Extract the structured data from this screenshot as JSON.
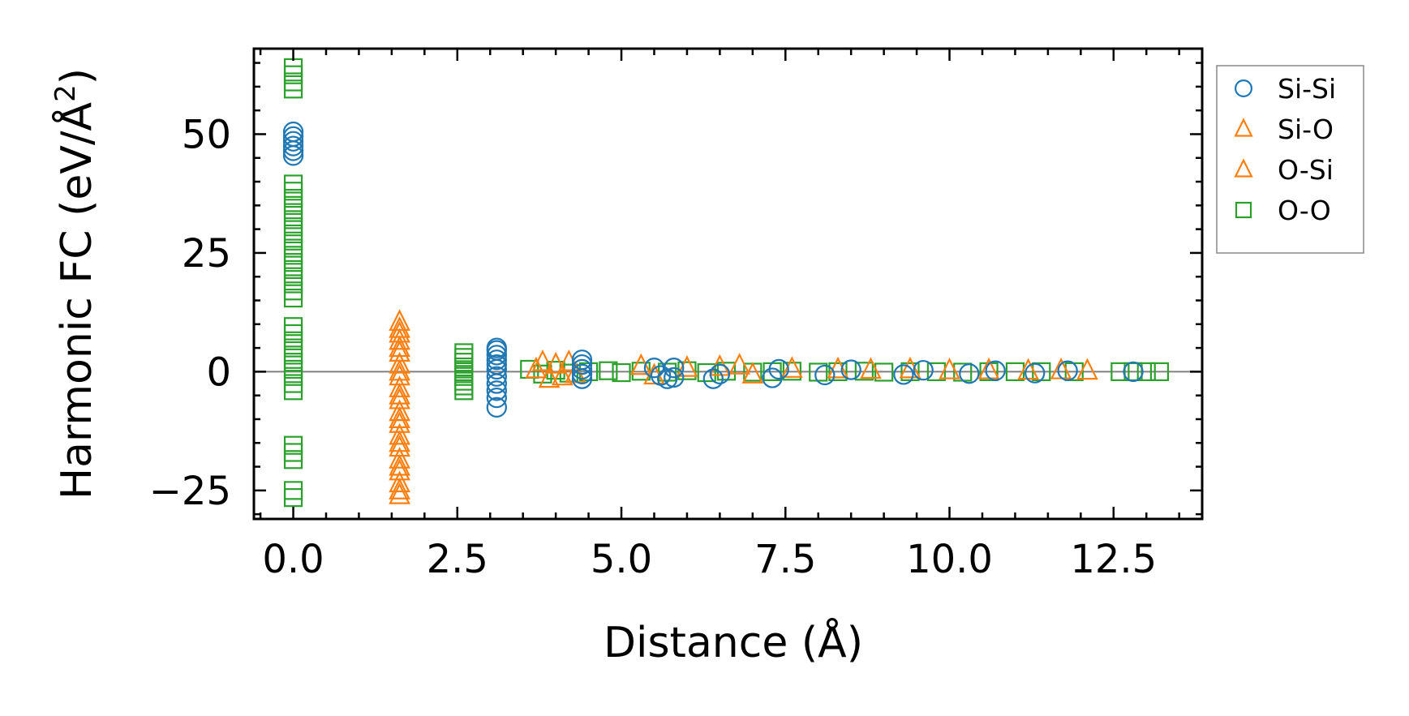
{
  "chart_data": {
    "type": "scatter",
    "xlabel": "Distance (Å)",
    "ylabel_main": "Harmonic FC (eV/Å",
    "ylabel_sup": "2",
    "ylabel_close": ")",
    "xlim": [
      -0.6,
      13.85
    ],
    "ylim": [
      -31,
      68
    ],
    "xticks": [
      0.0,
      2.5,
      5.0,
      7.5,
      10.0,
      12.5
    ],
    "xtick_labels": [
      "0.0",
      "2.5",
      "5.0",
      "7.5",
      "10.0",
      "12.5"
    ],
    "yticks": [
      -25,
      0,
      25,
      50
    ],
    "ytick_labels": [
      "−25",
      "0",
      "25",
      "50"
    ],
    "zero_line": true,
    "legend_position": "outside-right-top",
    "series": [
      {
        "name": "Si-Si",
        "marker": "circle",
        "color": "#1f77b4",
        "points": [
          [
            0.0,
            45.5
          ],
          [
            0.0,
            46.5
          ],
          [
            0.0,
            47.5
          ],
          [
            0.0,
            48.5
          ],
          [
            0.0,
            49.5
          ],
          [
            0.0,
            50.5
          ],
          [
            3.1,
            -7.5
          ],
          [
            3.1,
            -5.5
          ],
          [
            3.1,
            -4.0
          ],
          [
            3.1,
            -2.5
          ],
          [
            3.1,
            -1.0
          ],
          [
            3.1,
            0.5
          ],
          [
            3.1,
            1.5
          ],
          [
            3.1,
            2.5
          ],
          [
            3.1,
            3.5
          ],
          [
            3.1,
            4.5
          ],
          [
            3.1,
            5.0
          ],
          [
            4.4,
            -1.5
          ],
          [
            4.4,
            -0.5
          ],
          [
            4.4,
            0.5
          ],
          [
            4.4,
            1.5
          ],
          [
            4.4,
            2.5
          ],
          [
            5.5,
            0.8
          ],
          [
            5.6,
            -0.8
          ],
          [
            5.7,
            -1.5
          ],
          [
            5.8,
            -1.2
          ],
          [
            5.8,
            0.8
          ],
          [
            6.4,
            -1.5
          ],
          [
            6.5,
            -0.5
          ],
          [
            7.3,
            -1.3
          ],
          [
            7.4,
            0.5
          ],
          [
            8.1,
            -0.7
          ],
          [
            8.5,
            0.4
          ],
          [
            9.3,
            -0.6
          ],
          [
            9.6,
            0.3
          ],
          [
            10.3,
            -0.4
          ],
          [
            10.7,
            0.2
          ],
          [
            11.3,
            -0.3
          ],
          [
            11.8,
            0.2
          ],
          [
            12.8,
            0.0
          ]
        ]
      },
      {
        "name": "Si-O",
        "marker": "triangle",
        "color": "#ff7f0e",
        "points": [
          [
            1.62,
            -26.0
          ],
          [
            1.62,
            -23.5
          ],
          [
            1.62,
            -21.0
          ],
          [
            1.62,
            -18.5
          ],
          [
            1.62,
            -16.0
          ],
          [
            1.62,
            -13.5
          ],
          [
            1.62,
            -11.0
          ],
          [
            1.62,
            -8.5
          ],
          [
            1.62,
            -6.0
          ],
          [
            1.62,
            -3.5
          ],
          [
            1.62,
            -1.0
          ],
          [
            1.62,
            1.5
          ],
          [
            1.62,
            4.0
          ],
          [
            1.62,
            6.5
          ],
          [
            1.62,
            9.0
          ],
          [
            1.62,
            10.5
          ],
          [
            3.7,
            0.5
          ],
          [
            3.8,
            2.0
          ],
          [
            3.9,
            -1.5
          ],
          [
            4.0,
            1.5
          ],
          [
            4.1,
            -1.0
          ],
          [
            4.2,
            2.0
          ],
          [
            4.3,
            -0.5
          ],
          [
            5.3,
            1.2
          ],
          [
            5.5,
            -0.8
          ],
          [
            6.0,
            0.8
          ],
          [
            6.5,
            1.0
          ],
          [
            6.8,
            1.3
          ],
          [
            7.0,
            -0.6
          ],
          [
            7.6,
            0.6
          ],
          [
            8.3,
            0.5
          ],
          [
            8.8,
            0.4
          ],
          [
            9.4,
            0.5
          ],
          [
            10.0,
            0.3
          ],
          [
            10.6,
            0.3
          ],
          [
            11.2,
            0.2
          ],
          [
            11.7,
            0.3
          ],
          [
            12.1,
            0.2
          ]
        ]
      },
      {
        "name": "O-Si",
        "marker": "triangle",
        "color": "#ff7f0e",
        "points": [
          [
            1.62,
            -25.0
          ],
          [
            1.62,
            -20.0
          ],
          [
            1.62,
            -15.0
          ],
          [
            1.62,
            -10.0
          ],
          [
            1.62,
            -5.0
          ],
          [
            1.62,
            0.0
          ],
          [
            1.62,
            5.0
          ],
          [
            1.62,
            8.0
          ]
        ]
      },
      {
        "name": "O-O",
        "marker": "square",
        "color": "#2ca02c",
        "points": [
          [
            0.0,
            -26.5
          ],
          [
            0.0,
            -25.0
          ],
          [
            0.0,
            -18.5
          ],
          [
            0.0,
            -17.0
          ],
          [
            0.0,
            -15.5
          ],
          [
            0.0,
            -4.0
          ],
          [
            0.0,
            -2.5
          ],
          [
            0.0,
            -1.0
          ],
          [
            0.0,
            0.5
          ],
          [
            0.0,
            2.0
          ],
          [
            0.0,
            3.5
          ],
          [
            0.0,
            5.0
          ],
          [
            0.0,
            6.5
          ],
          [
            0.0,
            8.0
          ],
          [
            0.0,
            9.5
          ],
          [
            0.0,
            15.5
          ],
          [
            0.0,
            17.0
          ],
          [
            0.0,
            18.5
          ],
          [
            0.0,
            20.0
          ],
          [
            0.0,
            21.5
          ],
          [
            0.0,
            23.0
          ],
          [
            0.0,
            24.5
          ],
          [
            0.0,
            26.0
          ],
          [
            0.0,
            27.5
          ],
          [
            0.0,
            29.0
          ],
          [
            0.0,
            30.5
          ],
          [
            0.0,
            32.0
          ],
          [
            0.0,
            33.5
          ],
          [
            0.0,
            35.0
          ],
          [
            0.0,
            36.5
          ],
          [
            0.0,
            38.0
          ],
          [
            0.0,
            39.5
          ],
          [
            0.0,
            59.5
          ],
          [
            0.0,
            61.0
          ],
          [
            0.0,
            62.5
          ],
          [
            0.0,
            64.0
          ],
          [
            2.6,
            -4.0
          ],
          [
            2.6,
            -3.0
          ],
          [
            2.6,
            -2.0
          ],
          [
            2.6,
            -1.0
          ],
          [
            2.6,
            0.0
          ],
          [
            2.6,
            1.0
          ],
          [
            2.6,
            2.0
          ],
          [
            2.6,
            3.0
          ],
          [
            2.6,
            4.0
          ],
          [
            3.6,
            0.5
          ],
          [
            3.8,
            -0.5
          ],
          [
            4.0,
            0.3
          ],
          [
            4.2,
            -0.3
          ],
          [
            4.5,
            0.0
          ],
          [
            4.8,
            0.2
          ],
          [
            5.0,
            -0.2
          ],
          [
            5.3,
            0.1
          ],
          [
            5.7,
            -0.1
          ],
          [
            6.0,
            0.2
          ],
          [
            6.3,
            -0.2
          ],
          [
            6.6,
            0.1
          ],
          [
            7.0,
            -0.1
          ],
          [
            7.3,
            0.0
          ],
          [
            7.6,
            0.1
          ],
          [
            8.0,
            -0.1
          ],
          [
            8.3,
            0.0
          ],
          [
            8.7,
            0.1
          ],
          [
            9.0,
            -0.1
          ],
          [
            9.4,
            0.0
          ],
          [
            9.8,
            0.0
          ],
          [
            10.2,
            -0.1
          ],
          [
            10.6,
            0.0
          ],
          [
            11.0,
            0.0
          ],
          [
            11.4,
            0.0
          ],
          [
            11.9,
            0.0
          ],
          [
            12.6,
            0.0
          ],
          [
            12.8,
            0.0
          ],
          [
            13.0,
            0.0
          ],
          [
            13.2,
            0.0
          ]
        ]
      }
    ]
  }
}
